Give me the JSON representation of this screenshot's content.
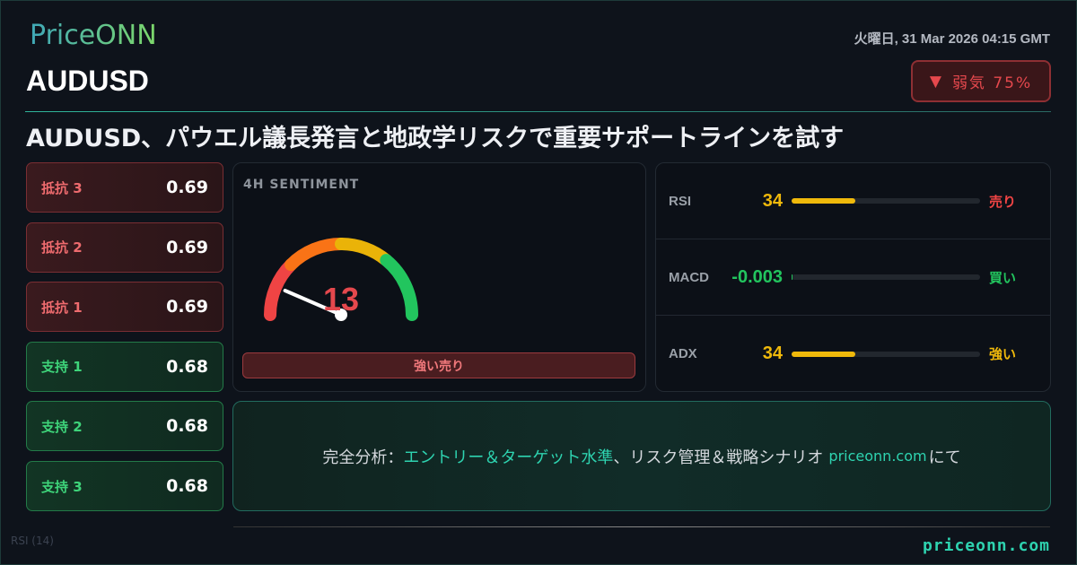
{
  "brand": "PriceONN",
  "symbol": "AUDUSD",
  "datetime": "火曜日, 31 Mar 2026 04:15 GMT",
  "badge": {
    "icon": "triangle-down-icon",
    "glyph": "▼",
    "label": "弱気 75%",
    "color": "#e5484d"
  },
  "headline": "AUDUSD、パウエル議長発言と地政学リスクで重要サポートラインを試す",
  "levels": [
    {
      "label": "抵抗 3",
      "value": "0.69",
      "type": "resistance"
    },
    {
      "label": "抵抗 2",
      "value": "0.69",
      "type": "resistance"
    },
    {
      "label": "抵抗 1",
      "value": "0.69",
      "type": "resistance"
    },
    {
      "label": "支持 1",
      "value": "0.68",
      "type": "support"
    },
    {
      "label": "支持 2",
      "value": "0.68",
      "type": "support"
    },
    {
      "label": "支持 3",
      "value": "0.68",
      "type": "support"
    }
  ],
  "sentiment": {
    "title": "4H SENTIMENT",
    "value": "13",
    "score": 13,
    "label": "強い売り",
    "colors": [
      "#ef4444",
      "#f97316",
      "#eab308",
      "#22c55e"
    ]
  },
  "indicators": [
    {
      "name": "RSI",
      "value": "34",
      "fill_percent": 34,
      "signal": "売り",
      "value_color": "#f0b90b",
      "signal_color": "#ef4444",
      "bar_color": "#f0b90b"
    },
    {
      "name": "MACD",
      "value": "-0.003",
      "fill_percent": 0,
      "signal": "買い",
      "value_color": "#22c55e",
      "signal_color": "#22c55e",
      "bar_color": "#22c55e"
    },
    {
      "name": "ADX",
      "value": "34",
      "fill_percent": 34,
      "signal": "強い",
      "value_color": "#f0b90b",
      "signal_color": "#f0b90b",
      "bar_color": "#f0b90b"
    }
  ],
  "cta": {
    "prefix": "完全分析：",
    "highlight": "エントリー＆ターゲット水準",
    "middle": "、リスク管理＆戦略シナリオ",
    "site": "priceonn.com",
    "suffix": "にて"
  },
  "footer": "priceonn.com",
  "background_chart_label": "RSI (14)"
}
